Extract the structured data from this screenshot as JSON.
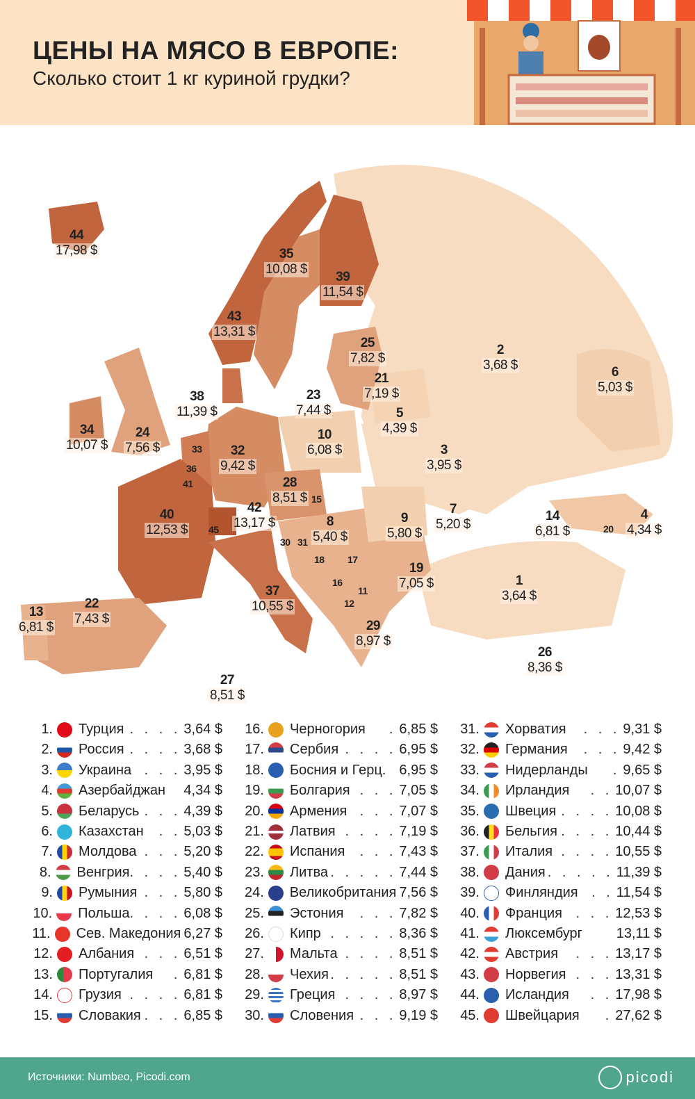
{
  "header": {
    "title": "ЦЕНЫ НА МЯСО В ЕВРОПЕ:",
    "subtitle": "Сколько стоит 1 кг куриной грудки?"
  },
  "colors": {
    "header_bg": "#fde3c6",
    "darkest": "#c1653f",
    "dark": "#d68c63",
    "medium": "#e8b28f",
    "light": "#f7dcc1",
    "footer": "#50a68c"
  },
  "map": {
    "labels": [
      {
        "rank": "44",
        "price": "17,98 $"
      },
      {
        "rank": "35",
        "price": "10,08 $"
      },
      {
        "rank": "39",
        "price": "11,54 $"
      },
      {
        "rank": "43",
        "price": "13,31 $"
      },
      {
        "rank": "25",
        "price": "7,82 $"
      },
      {
        "rank": "21",
        "price": "7,19 $"
      },
      {
        "rank": "23",
        "price": "7,44 $"
      },
      {
        "rank": "2",
        "price": "3,68 $"
      },
      {
        "rank": "6",
        "price": "5,03 $"
      },
      {
        "rank": "38",
        "price": "11,39 $"
      },
      {
        "rank": "34",
        "price": "10,07 $"
      },
      {
        "rank": "24",
        "price": "7,56 $"
      },
      {
        "rank": "10",
        "price": "6,08 $"
      },
      {
        "rank": "5",
        "price": "4,39 $"
      },
      {
        "rank": "3",
        "price": "3,95 $"
      },
      {
        "rank": "33",
        "price": ""
      },
      {
        "rank": "32",
        "price": "9,42 $"
      },
      {
        "rank": "36",
        "price": ""
      },
      {
        "rank": "41",
        "price": ""
      },
      {
        "rank": "28",
        "price": "8,51 $"
      },
      {
        "rank": "15",
        "price": ""
      },
      {
        "rank": "40",
        "price": "12,53 $"
      },
      {
        "rank": "42",
        "price": "13,17 $"
      },
      {
        "rank": "45",
        "price": ""
      },
      {
        "rank": "8",
        "price": "5,40 $"
      },
      {
        "rank": "9",
        "price": "5,80 $"
      },
      {
        "rank": "7",
        "price": "5,20 $"
      },
      {
        "rank": "14",
        "price": "6,81 $"
      },
      {
        "rank": "4",
        "price": "4,34 $"
      },
      {
        "rank": "20",
        "price": ""
      },
      {
        "rank": "30",
        "price": ""
      },
      {
        "rank": "31",
        "price": ""
      },
      {
        "rank": "18",
        "price": ""
      },
      {
        "rank": "17",
        "price": ""
      },
      {
        "rank": "19",
        "price": "7,05 $"
      },
      {
        "rank": "16",
        "price": ""
      },
      {
        "rank": "11",
        "price": ""
      },
      {
        "rank": "12",
        "price": ""
      },
      {
        "rank": "1",
        "price": "3,64 $"
      },
      {
        "rank": "13",
        "price": "6,81 $"
      },
      {
        "rank": "22",
        "price": "7,43 $"
      },
      {
        "rank": "37",
        "price": "10,55 $"
      },
      {
        "rank": "29",
        "price": "8,97 $"
      },
      {
        "rank": "26",
        "price": "8,36 $"
      },
      {
        "rank": "27",
        "price": "8,51 $"
      }
    ]
  },
  "ranking": [
    {
      "n": "1.",
      "country": "Турция",
      "dots": ". . . .",
      "price": "3,64 $",
      "flag": "turkey"
    },
    {
      "n": "2.",
      "country": "Россия",
      "dots": ". . . .",
      "price": "3,68 $",
      "flag": "russia"
    },
    {
      "n": "3.",
      "country": "Украина",
      "dots": ". . .",
      "price": "3,95 $",
      "flag": "ukraine"
    },
    {
      "n": "4.",
      "country": "Азербайджан",
      "dots": "",
      "price": "4,34 $",
      "flag": "azerbaijan"
    },
    {
      "n": "5.",
      "country": "Беларусь",
      "dots": ". . .",
      "price": "4,39 $",
      "flag": "belarus"
    },
    {
      "n": "6.",
      "country": "Казахстан",
      "dots": ". .",
      "price": "5,03 $",
      "flag": "kazakhstan"
    },
    {
      "n": "7.",
      "country": "Молдова",
      "dots": ". . .",
      "price": "5,20 $",
      "flag": "moldova"
    },
    {
      "n": "8.",
      "country": "Венгрия",
      "dots": ". . . .",
      "price": "5,40 $",
      "flag": "hungary"
    },
    {
      "n": "9.",
      "country": "Румыния",
      "dots": ". . .",
      "price": "5,80 $",
      "flag": "romania"
    },
    {
      "n": "10.",
      "country": "Польша",
      "dots": ". . . .",
      "price": "6,08 $",
      "flag": "poland"
    },
    {
      "n": "11.",
      "country": "Сев. Македония",
      "dots": "",
      "price": "6,27 $",
      "flag": "north-macedonia"
    },
    {
      "n": "12.",
      "country": "Албания",
      "dots": ". . .",
      "price": "6,51 $",
      "flag": "albania"
    },
    {
      "n": "13.",
      "country": "Португалия",
      "dots": ".",
      "price": "6,81 $",
      "flag": "portugal"
    },
    {
      "n": "14.",
      "country": "Грузия",
      "dots": ". . . .",
      "price": "6,81 $",
      "flag": "georgia"
    },
    {
      "n": "15.",
      "country": "Словакия",
      "dots": ". . .",
      "price": "6,85 $",
      "flag": "slovakia"
    },
    {
      "n": "16.",
      "country": "Черногория",
      "dots": ".",
      "price": "6,85 $",
      "flag": "montenegro"
    },
    {
      "n": "17.",
      "country": "Сербия",
      "dots": ". . . .",
      "price": "6,95 $",
      "flag": "serbia"
    },
    {
      "n": "18.",
      "country": "Босния и Герц.",
      "dots": "",
      "price": "6,95 $",
      "flag": "bosnia"
    },
    {
      "n": "19.",
      "country": "Болгария",
      "dots": ". . .",
      "price": "7,05 $",
      "flag": "bulgaria"
    },
    {
      "n": "20.",
      "country": "Армения",
      "dots": ". . .",
      "price": "7,07 $",
      "flag": "armenia"
    },
    {
      "n": "21.",
      "country": "Латвия",
      "dots": ". . . .",
      "price": "7,19 $",
      "flag": "latvia"
    },
    {
      "n": "22.",
      "country": "Испания",
      "dots": ". . .",
      "price": "7,43 $",
      "flag": "spain"
    },
    {
      "n": "23.",
      "country": "Литва",
      "dots": ". . . . .",
      "price": "7,44 $",
      "flag": "lithuania"
    },
    {
      "n": "24.",
      "country": "Великобритания",
      "dots": "",
      "price": "7,56 $",
      "flag": "uk"
    },
    {
      "n": "25.",
      "country": "Эстония",
      "dots": ". . .",
      "price": "7,82 $",
      "flag": "estonia"
    },
    {
      "n": "26.",
      "country": "Кипр",
      "dots": ". . . . .",
      "price": "8,36 $",
      "flag": "cyprus"
    },
    {
      "n": "27.",
      "country": "Мальта",
      "dots": ". . . .",
      "price": "8,51 $",
      "flag": "malta"
    },
    {
      "n": "28.",
      "country": "Чехия",
      "dots": ". . . . .",
      "price": "8,51 $",
      "flag": "czechia"
    },
    {
      "n": "29.",
      "country": "Греция",
      "dots": ". . . .",
      "price": "8,97 $",
      "flag": "greece"
    },
    {
      "n": "30.",
      "country": "Словения",
      "dots": ". . .",
      "price": "9,19 $",
      "flag": "slovenia"
    },
    {
      "n": "31.",
      "country": "Хорватия",
      "dots": ". . .",
      "price": "9,31 $",
      "flag": "croatia"
    },
    {
      "n": "32.",
      "country": "Германия",
      "dots": ". . .",
      "price": "9,42 $",
      "flag": "germany"
    },
    {
      "n": "33.",
      "country": "Нидерланды",
      "dots": ".",
      "price": "9,65 $",
      "flag": "netherlands"
    },
    {
      "n": "34.",
      "country": "Ирландия",
      "dots": ". .",
      "price": "10,07 $",
      "flag": "ireland"
    },
    {
      "n": "35.",
      "country": "Швеция",
      "dots": ". . . .",
      "price": "10,08 $",
      "flag": "sweden"
    },
    {
      "n": "36.",
      "country": "Бельгия",
      "dots": ". . . .",
      "price": "10,44 $",
      "flag": "belgium"
    },
    {
      "n": "37.",
      "country": "Италия",
      "dots": ". . . .",
      "price": "10,55 $",
      "flag": "italy"
    },
    {
      "n": "38.",
      "country": "Дания",
      "dots": ". . . . .",
      "price": "11,39 $",
      "flag": "denmark"
    },
    {
      "n": "39.",
      "country": "Финляндия",
      "dots": ". .",
      "price": "11,54 $",
      "flag": "finland"
    },
    {
      "n": "40.",
      "country": "Франция",
      "dots": ". . .",
      "price": "12,53 $",
      "flag": "france"
    },
    {
      "n": "41.",
      "country": "Люксембург",
      "dots": "",
      "price": "13,11 $",
      "flag": "luxembourg"
    },
    {
      "n": "42.",
      "country": "Австрия",
      "dots": ". . .",
      "price": "13,17 $",
      "flag": "austria"
    },
    {
      "n": "43.",
      "country": "Норвегия",
      "dots": ". . .",
      "price": "13,31 $",
      "flag": "norway"
    },
    {
      "n": "44.",
      "country": "Исландия",
      "dots": ". .",
      "price": "17,98 $",
      "flag": "iceland"
    },
    {
      "n": "45.",
      "country": "Швейцария",
      "dots": ".",
      "price": "27,62 $",
      "flag": "switzerland"
    }
  ],
  "footer": {
    "sources": "Источники: Numbeo, Picodi.com",
    "logo": "picodi"
  }
}
